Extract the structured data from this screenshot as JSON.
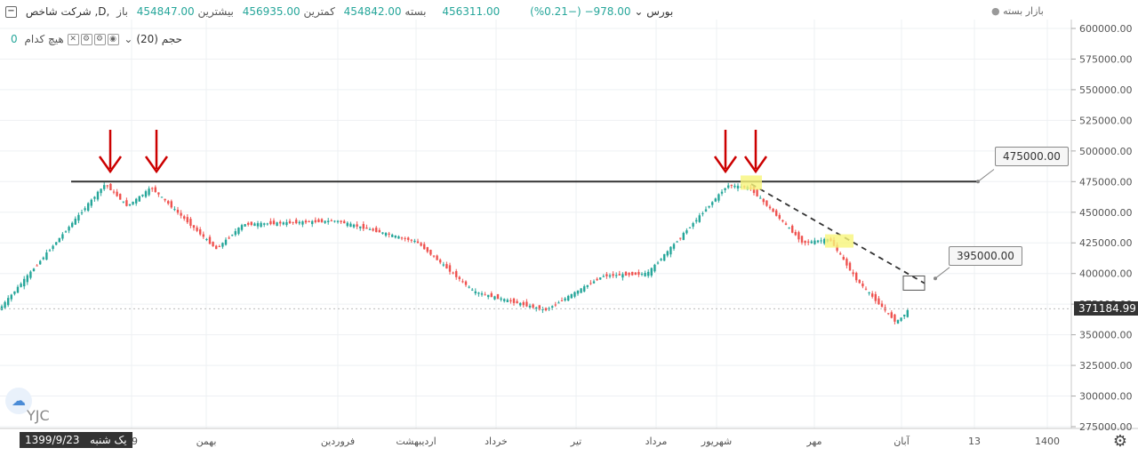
{
  "header": {
    "symbol": "شرکت شاخص ,D, بورس",
    "open_label": "باز",
    "open_value": "454847.00",
    "high_label": "بیشترین",
    "high_value": "456935.00",
    "low_label": "کمترین",
    "low_value": "454842.00",
    "close_label": "بسته",
    "close_value": "456311.00",
    "change": "978.00− (−0.21%)",
    "market_status": "بازار بسته"
  },
  "volume": {
    "label": "حجم (20)",
    "none_label": "هیچ کدام",
    "value": "0"
  },
  "price_axis": {
    "ticks": [
      "600000.00",
      "575000.00",
      "550000.00",
      "525000.00",
      "500000.00",
      "475000.00",
      "450000.00",
      "425000.00",
      "400000.00",
      "375000.00",
      "350000.00",
      "325000.00",
      "300000.00",
      "275000.00"
    ],
    "current_price": "371184.99"
  },
  "time_axis": {
    "labels": [
      "99",
      "بهمن",
      "فروردین",
      "اردیبهشت",
      "خرداد",
      "تیر",
      "مرداد",
      "شهریور",
      "مهر",
      "آبان",
      "13",
      "1400"
    ]
  },
  "annotations": {
    "resistance_label": "475000.00",
    "target_label": "395000.00"
  },
  "footer": {
    "date": "1399/9/23",
    "day": "یک شنبه",
    "watermark": "YJC"
  },
  "colors": {
    "up": "#26a69a",
    "down": "#ef5350",
    "arrow": "#cc0000",
    "highlight": "#f7f57a",
    "line": "#333333"
  },
  "chart_data": {
    "type": "candlestick",
    "y_range": [
      275000,
      610000
    ],
    "resistance": 475000,
    "target": 395000,
    "last": 371184.99,
    "path_keypoints": [
      {
        "label": "start",
        "value": 370000
      },
      {
        "label": "peak1",
        "value": 473000
      },
      {
        "label": "dip",
        "value": 455000
      },
      {
        "label": "peak2",
        "value": 470000
      },
      {
        "label": "بهمن",
        "value": 420000
      },
      {
        "label": "plateau",
        "value": 440000
      },
      {
        "label": "فروردین",
        "value": 443000
      },
      {
        "label": "اردیبهشت",
        "value": 426000
      },
      {
        "label": "خرداد",
        "value": 385000
      },
      {
        "label": "تیر",
        "value": 370000
      },
      {
        "label": "mid",
        "value": 398000
      },
      {
        "label": "مرداد",
        "value": 400000
      },
      {
        "label": "peak3",
        "value": 472000
      },
      {
        "label": "شهریور",
        "value": 470000
      },
      {
        "label": "mid-fall",
        "value": 425000
      },
      {
        "label": "مهر",
        "value": 428000
      },
      {
        "label": "fall",
        "value": 395000
      },
      {
        "label": "آبان",
        "value": 360000
      },
      {
        "label": "last",
        "value": 371185
      }
    ]
  }
}
